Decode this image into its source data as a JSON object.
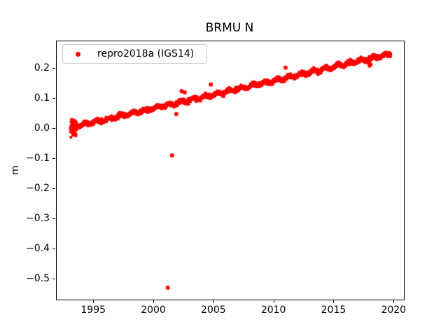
{
  "figure": {
    "background": "#ffffff"
  },
  "chart_data": {
    "type": "scatter",
    "title": "BRMU N",
    "xlabel": "",
    "ylabel": "m",
    "legend_position": "upper left",
    "grid": false,
    "marker_color": "#ff0000",
    "xlim": [
      1991.9,
      2020.8
    ],
    "ylim": [
      -0.5665,
      0.2905
    ],
    "xticks": [
      1995,
      2000,
      2005,
      2010,
      2015,
      2020
    ],
    "yticks": [
      0.2,
      0.1,
      0.0,
      -0.1,
      -0.2,
      -0.3,
      -0.4,
      -0.5
    ],
    "series": [
      {
        "name": "repro2018a (IGS14)",
        "color": "#ff0000",
        "trend": {
          "x_start": 1993.05,
          "x_end": 2019.7,
          "y_start": 0.004,
          "y_end": 0.249,
          "slope_per_year": 0.0092,
          "annual_amplitude": 0.004,
          "noise_sd": 0.0035,
          "n_points": 2600
        },
        "start_cluster": {
          "x_start": 1993.05,
          "x_end": 1993.55,
          "n_points": 45,
          "y_min": -0.028,
          "y_max": 0.032
        },
        "outliers": [
          [
            2001.15,
            -0.527
          ],
          [
            2001.5,
            -0.088
          ],
          [
            2001.85,
            0.049
          ],
          [
            2002.3,
            0.125
          ],
          [
            2002.55,
            0.121
          ],
          [
            2004.73,
            0.147
          ],
          [
            2010.95,
            0.203
          ],
          [
            2017.95,
            0.21
          ],
          [
            2018.02,
            0.214
          ]
        ]
      }
    ]
  }
}
